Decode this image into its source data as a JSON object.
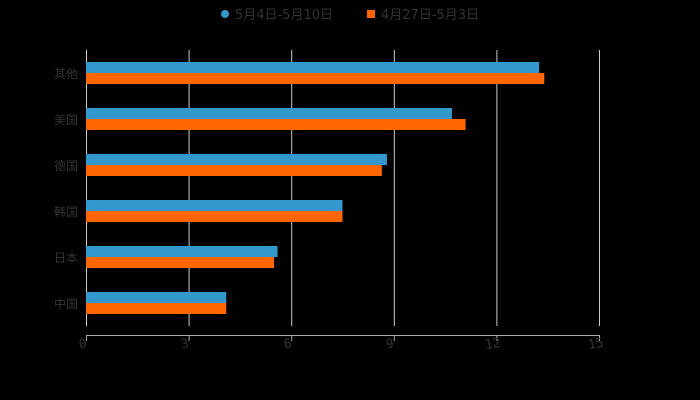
{
  "legend": [
    {
      "label": "5月4日-5月10日",
      "color": "#3399cc",
      "shape": "circle"
    },
    {
      "label": "4月27日-5月3日",
      "color": "#ff6600",
      "shape": "square"
    }
  ],
  "chart_data": {
    "type": "bar",
    "orientation": "horizontal",
    "title": "",
    "categories": [
      "其他",
      "美国",
      "德国",
      "韩国",
      "日本",
      "中国"
    ],
    "series": [
      {
        "name": "5月4日-5月10日",
        "color": "#3399cc",
        "values": [
          13.25,
          10.7,
          8.8,
          7.5,
          5.6,
          4.1
        ]
      },
      {
        "name": "4月27日-5月3日",
        "color": "#ff6600",
        "values": [
          13.4,
          11.1,
          8.65,
          7.5,
          5.5,
          4.1
        ]
      }
    ],
    "xlabel": "",
    "ylabel": "",
    "xlim": [
      0,
      15
    ],
    "xticks": [
      "0",
      "3",
      "6",
      "9",
      "12",
      "15"
    ],
    "grid": true,
    "legend_position": "top"
  }
}
